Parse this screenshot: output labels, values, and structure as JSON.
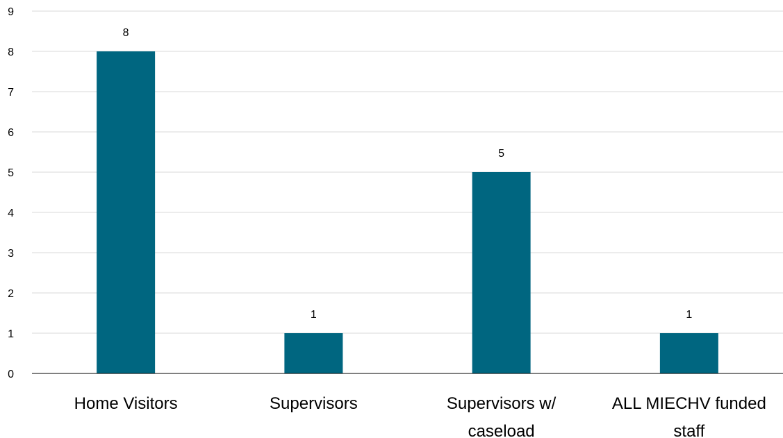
{
  "chart_data": {
    "type": "bar",
    "categories": [
      [
        "Home Visitors"
      ],
      [
        "Supervisors"
      ],
      [
        "Supervisors w/",
        "caseload"
      ],
      [
        "ALL MIECHV funded",
        "staff"
      ]
    ],
    "values": [
      8,
      1,
      5,
      1
    ],
    "data_labels": [
      "8",
      "1",
      "5",
      "1"
    ],
    "ylim": [
      0,
      9
    ],
    "yticks": [
      "0",
      "1",
      "2",
      "3",
      "4",
      "5",
      "6",
      "7",
      "8",
      "9"
    ],
    "grid": true,
    "legend": "none",
    "colors": {
      "bar": "#006680",
      "grid": "#d9d9d9",
      "axis": "#000000"
    }
  }
}
